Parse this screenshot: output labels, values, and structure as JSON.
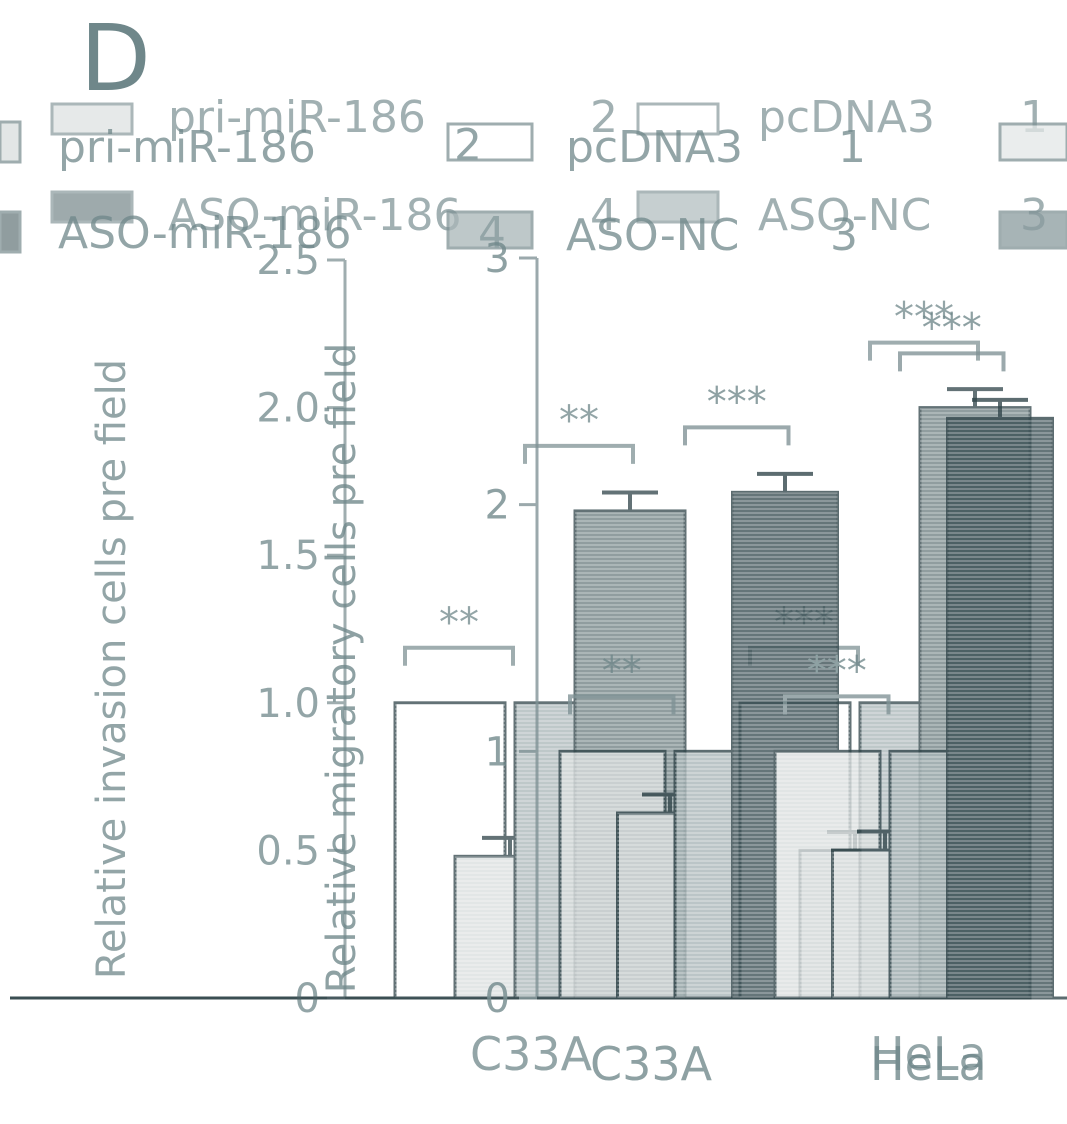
{
  "panel_label": "D",
  "legend": [
    {
      "label": "pri-miR-186",
      "number": "2",
      "fill": "#d9dede"
    },
    {
      "label": "pcDNA3",
      "number": "1",
      "fill": "#ffffff"
    },
    {
      "label": "ASO-miR-186",
      "number": "4",
      "fill": "#6b7d80"
    },
    {
      "label": "ASO-NC",
      "number": "3",
      "fill": "#a9b6b8"
    }
  ],
  "colors": {
    "text": "#6f878a",
    "axis": "#7f9295",
    "frame": "#2f4449",
    "grey_light": "#d9dede",
    "grey_mid": "#a9b6b8",
    "grey_dark": "#6b7d80",
    "grey_darkest": "#3a4f54"
  },
  "chart_data": [
    {
      "type": "bar",
      "ylabel": "Relative invasion cells pre field",
      "ylim": [
        0,
        2.5
      ],
      "yticks": [
        "0",
        "0.5",
        "1.0",
        "1.5",
        "2.0",
        "2.5"
      ],
      "categories": [
        "C33A",
        "HeLa"
      ],
      "series": [
        {
          "name": "pcDNA3",
          "values": [
            1.0,
            1.0
          ]
        },
        {
          "name": "pri-miR-186",
          "values": [
            0.48,
            0.5
          ]
        },
        {
          "name": "ASO-NC",
          "values": [
            1.0,
            1.0
          ]
        },
        {
          "name": "ASO-miR-186",
          "values": [
            1.65,
            2.0
          ]
        }
      ],
      "significance": [
        "**",
        "**",
        "***",
        "***"
      ]
    },
    {
      "type": "bar",
      "ylabel": "Relative migratory cells pre field",
      "ylim": [
        0,
        3
      ],
      "yticks": [
        "0",
        "1",
        "2",
        "3"
      ],
      "categories": [
        "C33A",
        "HeLa"
      ],
      "series": [
        {
          "name": "pcDNA3",
          "values": [
            1.0,
            1.0
          ]
        },
        {
          "name": "pri-miR-186",
          "values": [
            0.75,
            0.6
          ]
        },
        {
          "name": "ASO-NC",
          "values": [
            1.0,
            1.0
          ]
        },
        {
          "name": "ASO-miR-186",
          "values": [
            2.05,
            2.35
          ]
        }
      ],
      "significance": [
        "**",
        "***",
        "***",
        "***"
      ]
    }
  ]
}
